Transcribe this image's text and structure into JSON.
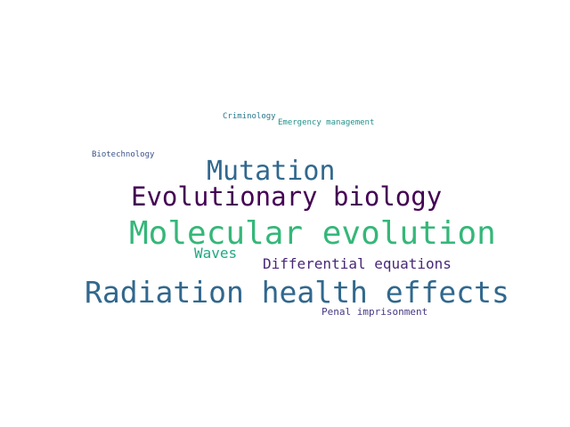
{
  "words": [
    {
      "text": "Criminology",
      "color": "#2a788e"
    },
    {
      "text": "Emergency management",
      "color": "#21918c"
    },
    {
      "text": "Biotechnology",
      "color": "#3b528b"
    },
    {
      "text": "Mutation",
      "color": "#31688e"
    },
    {
      "text": "Evolutionary biology",
      "color": "#440154"
    },
    {
      "text": "Molecular evolution",
      "color": "#35b779"
    },
    {
      "text": "Waves",
      "color": "#22a884"
    },
    {
      "text": "Differential equations",
      "color": "#482878"
    },
    {
      "text": "Radiation health effects",
      "color": "#31688e"
    },
    {
      "text": "Penal imprisonment",
      "color": "#443983"
    }
  ]
}
